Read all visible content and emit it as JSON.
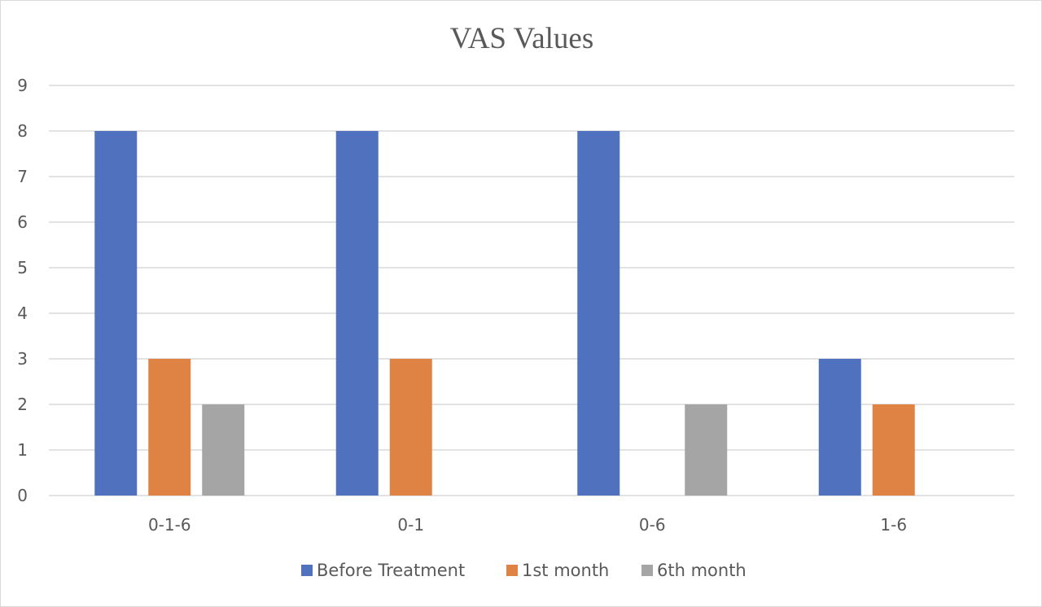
{
  "chart_data": {
    "type": "bar",
    "title": "VAS Values",
    "xlabel": "",
    "ylabel": "",
    "categories": [
      "0-1-6",
      "0-1",
      "0-6",
      "1-6"
    ],
    "series": [
      {
        "name": "Before Treatment",
        "color": "#4f71be",
        "values": [
          8,
          8,
          8,
          3
        ]
      },
      {
        "name": "1st month",
        "color": "#df8344",
        "values": [
          3,
          3,
          null,
          2
        ]
      },
      {
        "name": "6th month",
        "color": "#a5a5a5",
        "values": [
          2,
          null,
          2,
          null
        ]
      }
    ],
    "ylim": [
      0,
      9
    ],
    "yticks": [
      0,
      1,
      2,
      3,
      4,
      5,
      6,
      7,
      8,
      9
    ],
    "grid": true,
    "legend_position": "bottom"
  }
}
